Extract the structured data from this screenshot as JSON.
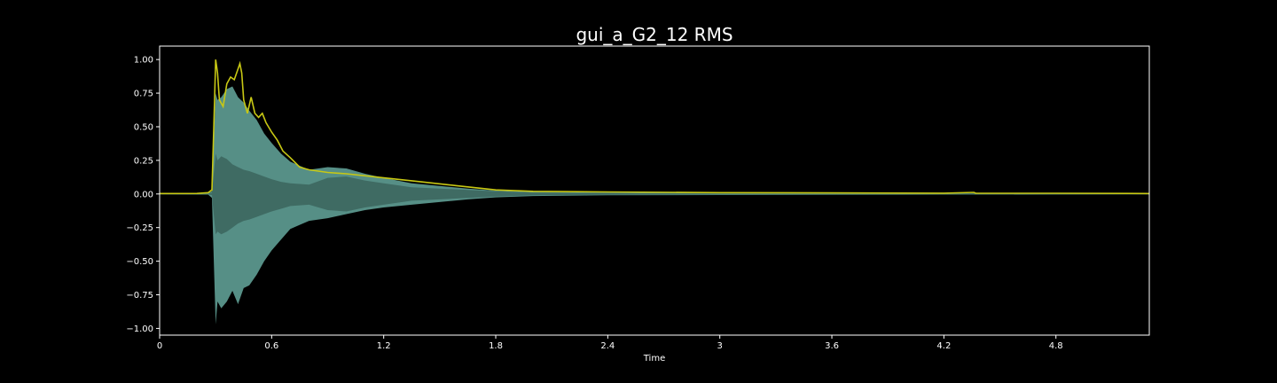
{
  "chart_data": {
    "type": "line",
    "title": "gui_a_G2_12 RMS",
    "xlabel": "Time",
    "ylabel": "",
    "xlim": [
      0,
      5.3
    ],
    "ylim": [
      -1.05,
      1.1
    ],
    "grid": false,
    "x_ticks": [
      0,
      0.6,
      1.2,
      1.8,
      2.4,
      3,
      3.6,
      4.2,
      4.8
    ],
    "x_tick_labels": [
      "0",
      "0.6",
      "1.2",
      "1.8",
      "2.4",
      "3",
      "3.6",
      "4.2",
      "4.8"
    ],
    "y_ticks": [
      1.0,
      0.75,
      0.5,
      0.25,
      0.0,
      -0.25,
      -0.5,
      -0.75,
      -1.0
    ],
    "y_tick_labels": [
      "1.00",
      "0.75",
      "0.50",
      "0.25",
      "0.00",
      "−0.25",
      "−0.50",
      "−0.75",
      "−1.00"
    ],
    "series": [
      {
        "name": "waveform",
        "kind": "envelope",
        "color": "#5f9e95",
        "inner_color": "#3f6b63",
        "x": [
          0,
          0.26,
          0.28,
          0.3,
          0.31,
          0.33,
          0.36,
          0.39,
          0.42,
          0.45,
          0.48,
          0.52,
          0.56,
          0.6,
          0.65,
          0.7,
          0.8,
          0.9,
          1.0,
          1.1,
          1.2,
          1.35,
          1.5,
          1.65,
          1.8,
          2.0,
          2.4,
          3.0,
          3.6,
          4.2,
          4.8,
          5.3
        ],
        "upper": [
          0.003,
          0.005,
          0.02,
          0.75,
          0.7,
          0.72,
          0.78,
          0.8,
          0.72,
          0.68,
          0.62,
          0.55,
          0.45,
          0.38,
          0.3,
          0.24,
          0.18,
          0.2,
          0.19,
          0.15,
          0.12,
          0.08,
          0.06,
          0.04,
          0.025,
          0.015,
          0.01,
          0.008,
          0.006,
          0.005,
          0.004,
          0.003
        ],
        "lower": [
          -0.003,
          -0.005,
          -0.03,
          -0.97,
          -0.8,
          -0.85,
          -0.8,
          -0.72,
          -0.82,
          -0.7,
          -0.68,
          -0.6,
          -0.5,
          -0.42,
          -0.34,
          -0.26,
          -0.2,
          -0.18,
          -0.15,
          -0.12,
          -0.1,
          -0.08,
          -0.06,
          -0.04,
          -0.025,
          -0.015,
          -0.01,
          -0.008,
          -0.006,
          -0.005,
          -0.004,
          -0.003
        ],
        "inner_upper": [
          0.001,
          0.002,
          0.01,
          0.3,
          0.25,
          0.28,
          0.26,
          0.22,
          0.2,
          0.18,
          0.17,
          0.15,
          0.13,
          0.11,
          0.09,
          0.08,
          0.07,
          0.12,
          0.13,
          0.1,
          0.08,
          0.05,
          0.04,
          0.03,
          0.02,
          0.01,
          0.006,
          0.005,
          0.004,
          0.003,
          0.002,
          0.001
        ],
        "inner_lower": [
          -0.001,
          -0.002,
          -0.01,
          -0.3,
          -0.28,
          -0.3,
          -0.28,
          -0.25,
          -0.22,
          -0.2,
          -0.19,
          -0.17,
          -0.15,
          -0.13,
          -0.11,
          -0.09,
          -0.08,
          -0.12,
          -0.13,
          -0.1,
          -0.08,
          -0.05,
          -0.04,
          -0.03,
          -0.02,
          -0.01,
          -0.006,
          -0.005,
          -0.004,
          -0.003,
          -0.002,
          -0.001
        ]
      },
      {
        "name": "RMS",
        "kind": "line",
        "color": "#c8c814",
        "x": [
          0,
          0.2,
          0.26,
          0.28,
          0.29,
          0.3,
          0.31,
          0.32,
          0.34,
          0.36,
          0.38,
          0.4,
          0.42,
          0.43,
          0.44,
          0.45,
          0.47,
          0.49,
          0.51,
          0.53,
          0.55,
          0.57,
          0.6,
          0.63,
          0.66,
          0.7,
          0.75,
          0.8,
          0.9,
          1.0,
          1.2,
          1.4,
          1.6,
          1.8,
          2.0,
          2.4,
          3.0,
          3.6,
          4.2,
          4.36,
          4.37,
          4.38,
          4.8,
          5.3
        ],
        "y": [
          0.003,
          0.004,
          0.01,
          0.03,
          0.5,
          1.0,
          0.9,
          0.7,
          0.65,
          0.82,
          0.87,
          0.85,
          0.93,
          0.97,
          0.9,
          0.7,
          0.6,
          0.72,
          0.6,
          0.57,
          0.6,
          0.53,
          0.46,
          0.4,
          0.32,
          0.27,
          0.2,
          0.18,
          0.16,
          0.15,
          0.12,
          0.09,
          0.06,
          0.03,
          0.02,
          0.015,
          0.01,
          0.008,
          0.006,
          0.012,
          0.006,
          0.005,
          0.005,
          0.003
        ]
      }
    ]
  }
}
